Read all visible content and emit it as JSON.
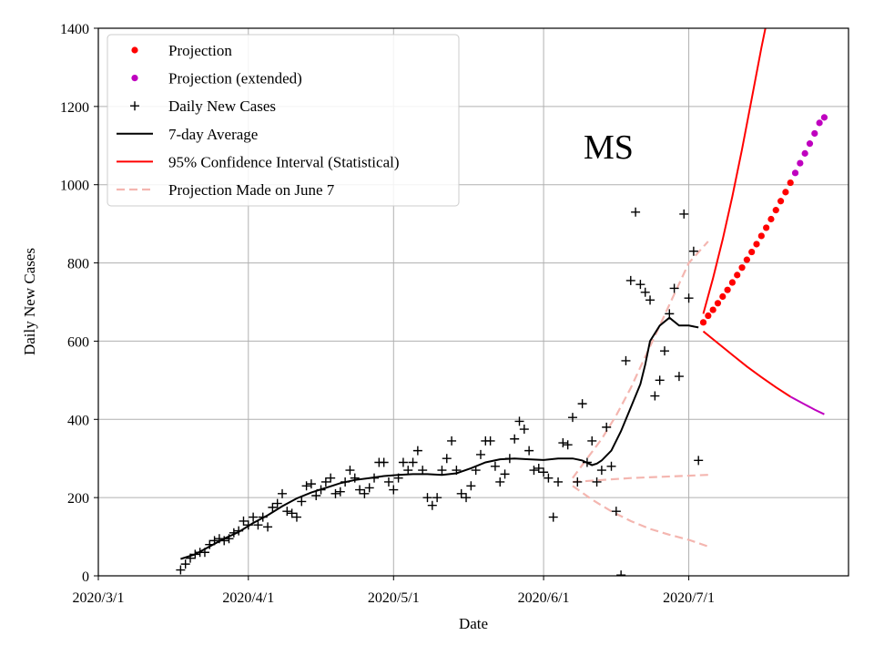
{
  "chart_data": {
    "type": "line",
    "title": "",
    "annotation": "MS",
    "xlabel": "Date",
    "ylabel": "Daily New Cases",
    "xlim": [
      0,
      155
    ],
    "ylim": [
      0,
      1400
    ],
    "x_origin_date": "2020/3/1",
    "x_unit": "days since 2020/3/1",
    "xticks": [
      {
        "value": 0,
        "label": "2020/3/1"
      },
      {
        "value": 31,
        "label": "2020/4/1"
      },
      {
        "value": 61,
        "label": "2020/5/1"
      },
      {
        "value": 92,
        "label": "2020/6/1"
      },
      {
        "value": 122,
        "label": "2020/7/1"
      }
    ],
    "yticks": [
      {
        "value": 0,
        "label": "0"
      },
      {
        "value": 200,
        "label": "200"
      },
      {
        "value": 400,
        "label": "400"
      },
      {
        "value": 600,
        "label": "600"
      },
      {
        "value": 800,
        "label": "800"
      },
      {
        "value": 1000,
        "label": "1000"
      },
      {
        "value": 1200,
        "label": "1200"
      },
      {
        "value": 1400,
        "label": "1400"
      }
    ],
    "grid": true,
    "legend_position": "top-left",
    "legend": [
      {
        "label": "Projection",
        "kind": "dot",
        "color": "#ff0000"
      },
      {
        "label": "Projection (extended)",
        "kind": "dot",
        "color": "#bf00bf"
      },
      {
        "label": "Daily New Cases",
        "kind": "plus",
        "color": "#000000"
      },
      {
        "label": "7-day Average",
        "kind": "line",
        "color": "#000000"
      },
      {
        "label": "95% Confidence Interval (Statistical)",
        "kind": "line",
        "color": "#ff0000"
      },
      {
        "label": "Projection Made on June 7",
        "kind": "dash",
        "color": "#f4b6b0"
      }
    ],
    "series": [
      {
        "name": "Daily New Cases",
        "style": "plus",
        "color": "#000000",
        "points": [
          [
            17,
            15
          ],
          [
            18,
            30
          ],
          [
            19,
            45
          ],
          [
            20,
            55
          ],
          [
            21,
            60
          ],
          [
            22,
            60
          ],
          [
            23,
            80
          ],
          [
            24,
            90
          ],
          [
            25,
            95
          ],
          [
            26,
            90
          ],
          [
            27,
            95
          ],
          [
            28,
            110
          ],
          [
            29,
            115
          ],
          [
            30,
            140
          ],
          [
            31,
            130
          ],
          [
            32,
            150
          ],
          [
            33,
            130
          ],
          [
            34,
            150
          ],
          [
            35,
            125
          ],
          [
            36,
            175
          ],
          [
            37,
            185
          ],
          [
            38,
            210
          ],
          [
            39,
            165
          ],
          [
            40,
            160
          ],
          [
            41,
            150
          ],
          [
            42,
            190
          ],
          [
            43,
            230
          ],
          [
            44,
            235
          ],
          [
            45,
            205
          ],
          [
            46,
            220
          ],
          [
            47,
            240
          ],
          [
            48,
            250
          ],
          [
            49,
            210
          ],
          [
            50,
            215
          ],
          [
            51,
            240
          ],
          [
            52,
            270
          ],
          [
            53,
            250
          ],
          [
            54,
            220
          ],
          [
            55,
            210
          ],
          [
            56,
            225
          ],
          [
            57,
            250
          ],
          [
            58,
            290
          ],
          [
            59,
            290
          ],
          [
            60,
            240
          ],
          [
            61,
            220
          ],
          [
            62,
            250
          ],
          [
            63,
            290
          ],
          [
            64,
            270
          ],
          [
            65,
            290
          ],
          [
            66,
            320
          ],
          [
            67,
            270
          ],
          [
            68,
            200
          ],
          [
            69,
            180
          ],
          [
            70,
            200
          ],
          [
            71,
            270
          ],
          [
            72,
            300
          ],
          [
            73,
            345
          ],
          [
            74,
            270
          ],
          [
            75,
            210
          ],
          [
            76,
            200
          ],
          [
            77,
            230
          ],
          [
            78,
            270
          ],
          [
            79,
            310
          ],
          [
            80,
            345
          ],
          [
            81,
            345
          ],
          [
            82,
            280
          ],
          [
            83,
            240
          ],
          [
            84,
            260
          ],
          [
            85,
            300
          ],
          [
            86,
            350
          ],
          [
            87,
            395
          ],
          [
            88,
            375
          ],
          [
            89,
            320
          ],
          [
            90,
            270
          ],
          [
            91,
            275
          ],
          [
            92,
            265
          ],
          [
            93,
            250
          ],
          [
            94,
            150
          ],
          [
            95,
            240
          ],
          [
            96,
            340
          ],
          [
            97,
            335
          ],
          [
            98,
            405
          ],
          [
            99,
            240
          ],
          [
            100,
            440
          ],
          [
            101,
            290
          ],
          [
            102,
            345
          ],
          [
            103,
            240
          ],
          [
            104,
            270
          ],
          [
            105,
            380
          ],
          [
            106,
            280
          ],
          [
            107,
            165
          ],
          [
            108,
            2
          ],
          [
            109,
            550
          ],
          [
            110,
            755
          ],
          [
            111,
            930
          ],
          [
            112,
            745
          ],
          [
            113,
            725
          ],
          [
            114,
            705
          ],
          [
            115,
            460
          ],
          [
            116,
            500
          ],
          [
            117,
            575
          ],
          [
            118,
            670
          ],
          [
            119,
            735
          ],
          [
            120,
            510
          ],
          [
            121,
            925
          ],
          [
            122,
            710
          ],
          [
            123,
            830
          ],
          [
            124,
            295
          ]
        ]
      },
      {
        "name": "7-day Average",
        "style": "line",
        "color": "#000000",
        "points": [
          [
            17,
            43
          ],
          [
            20,
            55
          ],
          [
            23,
            75
          ],
          [
            26,
            95
          ],
          [
            29,
            112
          ],
          [
            32,
            135
          ],
          [
            35,
            155
          ],
          [
            38,
            178
          ],
          [
            41,
            198
          ],
          [
            44,
            213
          ],
          [
            47,
            225
          ],
          [
            50,
            237
          ],
          [
            53,
            245
          ],
          [
            56,
            250
          ],
          [
            59,
            255
          ],
          [
            62,
            258
          ],
          [
            65,
            260
          ],
          [
            68,
            260
          ],
          [
            71,
            258
          ],
          [
            74,
            262
          ],
          [
            77,
            275
          ],
          [
            80,
            290
          ],
          [
            83,
            298
          ],
          [
            86,
            300
          ],
          [
            89,
            298
          ],
          [
            92,
            296
          ],
          [
            95,
            300
          ],
          [
            98,
            300
          ],
          [
            100,
            295
          ],
          [
            102,
            283
          ],
          [
            103,
            287
          ],
          [
            104,
            295
          ],
          [
            106,
            320
          ],
          [
            108,
            370
          ],
          [
            110,
            430
          ],
          [
            112,
            490
          ],
          [
            113,
            540
          ],
          [
            114,
            600
          ],
          [
            116,
            640
          ],
          [
            118,
            660
          ],
          [
            120,
            640
          ],
          [
            122,
            640
          ],
          [
            124,
            635
          ]
        ]
      },
      {
        "name": "Projection",
        "style": "dot",
        "color": "#ff0000",
        "points": [
          [
            125,
            648
          ],
          [
            126,
            665
          ],
          [
            127,
            680
          ],
          [
            128,
            697
          ],
          [
            129,
            714
          ],
          [
            130,
            731
          ],
          [
            131,
            750
          ],
          [
            132,
            769
          ],
          [
            133,
            788
          ],
          [
            134,
            808
          ],
          [
            135,
            828
          ],
          [
            136,
            848
          ],
          [
            137,
            869
          ],
          [
            138,
            890
          ],
          [
            139,
            912
          ],
          [
            140,
            935
          ],
          [
            141,
            958
          ],
          [
            142,
            981
          ],
          [
            143,
            1005
          ]
        ]
      },
      {
        "name": "Projection (extended)",
        "style": "dot",
        "color": "#bf00bf",
        "points": [
          [
            144,
            1030
          ],
          [
            145,
            1055
          ],
          [
            146,
            1080
          ],
          [
            147,
            1105
          ],
          [
            148,
            1131
          ],
          [
            149,
            1158
          ],
          [
            150,
            1172
          ]
        ]
      },
      {
        "name": "95% CI upper",
        "style": "line",
        "color": "#ff0000",
        "points": [
          [
            125,
            670
          ],
          [
            127,
            760
          ],
          [
            129,
            860
          ],
          [
            131,
            970
          ],
          [
            133,
            1090
          ],
          [
            135,
            1220
          ],
          [
            137,
            1350
          ],
          [
            138,
            1410
          ]
        ]
      },
      {
        "name": "95% CI lower",
        "style": "line",
        "color": "#ff0000",
        "points": [
          [
            125,
            625
          ],
          [
            128,
            595
          ],
          [
            131,
            565
          ],
          [
            134,
            535
          ],
          [
            137,
            508
          ],
          [
            140,
            482
          ],
          [
            143,
            458
          ]
        ]
      },
      {
        "name": "95% CI lower (extended)",
        "style": "line",
        "color": "#bf00bf",
        "points": [
          [
            143,
            458
          ],
          [
            146,
            438
          ],
          [
            148,
            425
          ],
          [
            150,
            413
          ]
        ]
      },
      {
        "name": "Projection Made on June 7 (upper)",
        "style": "dash",
        "color": "#f4b6b0",
        "points": [
          [
            98,
            250
          ],
          [
            101,
            300
          ],
          [
            104,
            350
          ],
          [
            107,
            410
          ],
          [
            110,
            480
          ],
          [
            113,
            560
          ],
          [
            116,
            640
          ],
          [
            119,
            720
          ],
          [
            122,
            800
          ],
          [
            126,
            855
          ]
        ]
      },
      {
        "name": "Projection Made on June 7 (middle)",
        "style": "dash",
        "color": "#f4b6b0",
        "points": [
          [
            98,
            240
          ],
          [
            104,
            245
          ],
          [
            110,
            250
          ],
          [
            116,
            253
          ],
          [
            122,
            256
          ],
          [
            126,
            258
          ]
        ]
      },
      {
        "name": "Projection Made on June 7 (lower)",
        "style": "dash",
        "color": "#f4b6b0",
        "points": [
          [
            98,
            230
          ],
          [
            102,
            195
          ],
          [
            106,
            165
          ],
          [
            110,
            140
          ],
          [
            114,
            120
          ],
          [
            118,
            105
          ],
          [
            122,
            92
          ],
          [
            126,
            75
          ]
        ]
      }
    ]
  }
}
